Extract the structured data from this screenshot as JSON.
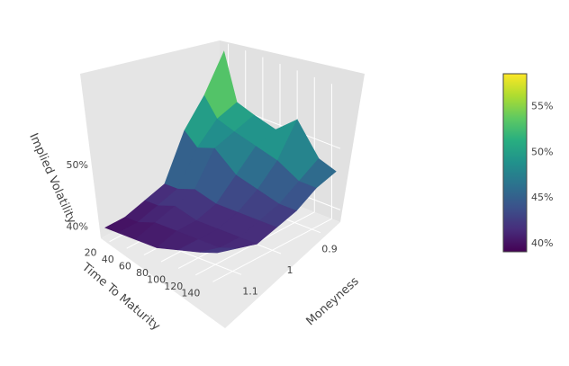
{
  "chart_data": {
    "type": "surface",
    "x_axis": {
      "label": "Moneyness",
      "ticks": [
        "0.9",
        "1",
        "1.1"
      ],
      "range": [
        0.85,
        1.15
      ]
    },
    "y_axis": {
      "label": "Time To Maturity",
      "ticks": [
        "20",
        "40",
        "60",
        "80",
        "100",
        "120",
        "140"
      ],
      "range": [
        10,
        150
      ]
    },
    "z_axis": {
      "label": "Implied Volatility",
      "ticks": [
        "40%",
        "50%"
      ],
      "range": [
        0.38,
        0.6
      ]
    },
    "colorbar": {
      "colorscale": "viridis",
      "range": [
        0.39,
        0.585
      ],
      "ticks": [
        "40%",
        "45%",
        "50%",
        "55%"
      ]
    },
    "moneyness": [
      0.85,
      0.9,
      0.95,
      1.0,
      1.05,
      1.1,
      1.15
    ],
    "maturity": [
      15,
      30,
      50,
      75,
      100,
      125,
      145
    ],
    "implied_vol": [
      [
        0.585,
        0.53,
        0.49,
        0.42,
        0.41,
        0.4,
        0.4
      ],
      [
        0.51,
        0.5,
        0.47,
        0.42,
        0.41,
        0.4,
        0.4
      ],
      [
        0.5,
        0.49,
        0.48,
        0.43,
        0.42,
        0.41,
        0.4
      ],
      [
        0.49,
        0.48,
        0.45,
        0.42,
        0.41,
        0.41,
        0.4
      ],
      [
        0.52,
        0.47,
        0.44,
        0.42,
        0.41,
        0.41,
        0.41
      ],
      [
        0.47,
        0.45,
        0.43,
        0.42,
        0.41,
        0.41,
        0.42
      ],
      [
        0.46,
        0.45,
        0.43,
        0.42,
        0.41,
        0.42,
        0.43
      ]
    ]
  }
}
